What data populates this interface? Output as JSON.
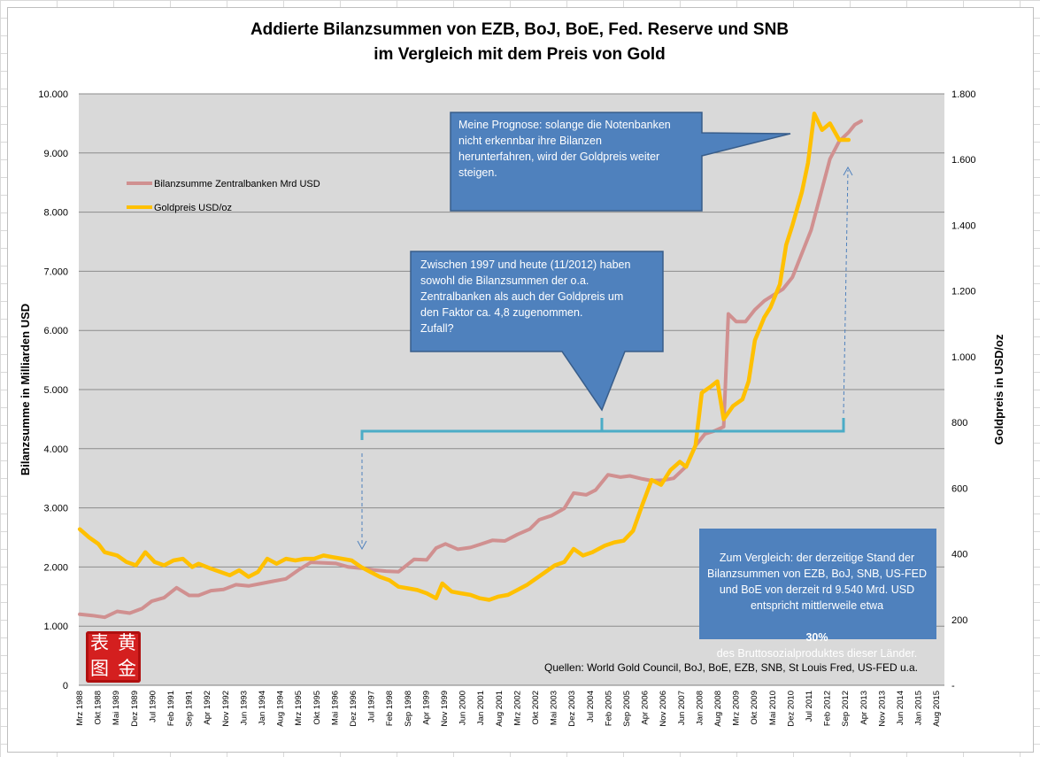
{
  "chart_data": {
    "type": "line",
    "title": [
      "Addierte Bilanzsummen von EZB, BoJ, BoE, Fed. Reserve und SNB",
      "im Vergleich mit dem Preis von Gold"
    ],
    "ylabel_left": "Bilanzsumme in Milliarden USD",
    "ylabel_right": "Goldpreis in USD/oz",
    "ylim_left": [
      0,
      10000
    ],
    "ylim_right": [
      0,
      1800
    ],
    "yticks_left": [
      "0",
      "1.000",
      "2.000",
      "3.000",
      "4.000",
      "5.000",
      "6.000",
      "7.000",
      "8.000",
      "9.000",
      "10.000"
    ],
    "yticks_right": [
      "-",
      "200",
      "400",
      "600",
      "800",
      "1.000",
      "1.200",
      "1.400",
      "1.600",
      "1.800"
    ],
    "x_categories": [
      "Mrz 1988",
      "Okt 1988",
      "Mai 1989",
      "Dez 1989",
      "Jul 1990",
      "Feb 1991",
      "Sep 1991",
      "Apr 1992",
      "Nov 1992",
      "Jun 1993",
      "Jan 1994",
      "Aug 1994",
      "Mrz 1995",
      "Okt 1995",
      "Mai 1996",
      "Dez 1996",
      "Jul 1997",
      "Feb 1998",
      "Sep 1998",
      "Apr 1999",
      "Nov 1999",
      "Jun 2000",
      "Jan 2001",
      "Aug 2001",
      "Mrz 2002",
      "Okt 2002",
      "Mai 2003",
      "Dez 2003",
      "Jul 2004",
      "Feb 2005",
      "Sep 2005",
      "Apr 2006",
      "Nov 2006",
      "Jun 2007",
      "Jan 2008",
      "Aug 2008",
      "Mrz 2009",
      "Okt 2009",
      "Mai 2010",
      "Dez 2010",
      "Jul 2011",
      "Feb 2012",
      "Sep 2012",
      "Apr 2013",
      "Nov 2013",
      "Jun 2014",
      "Jan 2015",
      "Aug 2015"
    ],
    "x_start": 1988.17,
    "x_step": 0.5833,
    "grid": "horizontal",
    "legend_position": "upper-left",
    "series": [
      {
        "name": "Bilanzsumme Zentralbanken Mrd USD",
        "axis": "left",
        "color": "#d09090",
        "points": [
          [
            1988.2,
            1200
          ],
          [
            1988.6,
            1180
          ],
          [
            1989.0,
            1150
          ],
          [
            1989.4,
            1250
          ],
          [
            1989.8,
            1220
          ],
          [
            1990.2,
            1300
          ],
          [
            1990.5,
            1420
          ],
          [
            1990.9,
            1480
          ],
          [
            1991.3,
            1650
          ],
          [
            1991.7,
            1520
          ],
          [
            1992.0,
            1520
          ],
          [
            1992.4,
            1600
          ],
          [
            1992.8,
            1620
          ],
          [
            1993.2,
            1700
          ],
          [
            1993.6,
            1680
          ],
          [
            1994.0,
            1720
          ],
          [
            1994.4,
            1760
          ],
          [
            1994.8,
            1800
          ],
          [
            1995.2,
            1950
          ],
          [
            1995.6,
            2080
          ],
          [
            1996.0,
            2070
          ],
          [
            1996.4,
            2060
          ],
          [
            1996.8,
            2000
          ],
          [
            1997.2,
            1980
          ],
          [
            1997.6,
            1950
          ],
          [
            1998.0,
            1930
          ],
          [
            1998.4,
            1920
          ],
          [
            1998.9,
            2130
          ],
          [
            1999.3,
            2120
          ],
          [
            1999.6,
            2320
          ],
          [
            1999.9,
            2390
          ],
          [
            2000.3,
            2300
          ],
          [
            2000.7,
            2330
          ],
          [
            2001.0,
            2380
          ],
          [
            2001.4,
            2450
          ],
          [
            2001.8,
            2440
          ],
          [
            2002.2,
            2550
          ],
          [
            2002.6,
            2640
          ],
          [
            2002.9,
            2800
          ],
          [
            2003.3,
            2870
          ],
          [
            2003.7,
            2990
          ],
          [
            2004.0,
            3250
          ],
          [
            2004.4,
            3220
          ],
          [
            2004.7,
            3300
          ],
          [
            2005.1,
            3560
          ],
          [
            2005.5,
            3520
          ],
          [
            2005.8,
            3540
          ],
          [
            2006.2,
            3490
          ],
          [
            2006.5,
            3460
          ],
          [
            2006.9,
            3470
          ],
          [
            2007.2,
            3500
          ],
          [
            2007.6,
            3700
          ],
          [
            2007.9,
            4050
          ],
          [
            2008.2,
            4250
          ],
          [
            2008.5,
            4300
          ],
          [
            2008.8,
            4370
          ],
          [
            2008.95,
            6280
          ],
          [
            2009.2,
            6150
          ],
          [
            2009.5,
            6150
          ],
          [
            2009.8,
            6350
          ],
          [
            2010.1,
            6500
          ],
          [
            2010.4,
            6600
          ],
          [
            2010.7,
            6700
          ],
          [
            2011.0,
            6900
          ],
          [
            2011.3,
            7300
          ],
          [
            2011.6,
            7700
          ],
          [
            2011.9,
            8300
          ],
          [
            2012.2,
            8900
          ],
          [
            2012.5,
            9200
          ],
          [
            2012.8,
            9350
          ],
          [
            2013.0,
            9480
          ],
          [
            2013.2,
            9540
          ]
        ]
      },
      {
        "name": "Goldpreis USD/oz",
        "axis": "right",
        "color": "#ffc000",
        "points": [
          [
            1988.2,
            475
          ],
          [
            1988.5,
            450
          ],
          [
            1988.8,
            430
          ],
          [
            1989.0,
            405
          ],
          [
            1989.4,
            395
          ],
          [
            1989.7,
            375
          ],
          [
            1990.0,
            365
          ],
          [
            1990.3,
            405
          ],
          [
            1990.6,
            375
          ],
          [
            1990.9,
            365
          ],
          [
            1991.2,
            380
          ],
          [
            1991.5,
            385
          ],
          [
            1991.8,
            360
          ],
          [
            1992.0,
            370
          ],
          [
            1992.4,
            355
          ],
          [
            1992.7,
            345
          ],
          [
            1993.0,
            335
          ],
          [
            1993.3,
            350
          ],
          [
            1993.6,
            330
          ],
          [
            1993.9,
            345
          ],
          [
            1994.2,
            385
          ],
          [
            1994.5,
            370
          ],
          [
            1994.8,
            385
          ],
          [
            1995.1,
            380
          ],
          [
            1995.4,
            385
          ],
          [
            1995.7,
            385
          ],
          [
            1996.0,
            395
          ],
          [
            1996.3,
            390
          ],
          [
            1996.6,
            385
          ],
          [
            1996.9,
            380
          ],
          [
            1997.2,
            360
          ],
          [
            1997.5,
            345
          ],
          [
            1997.8,
            330
          ],
          [
            1998.1,
            320
          ],
          [
            1998.4,
            300
          ],
          [
            1998.7,
            295
          ],
          [
            1999.0,
            290
          ],
          [
            1999.3,
            280
          ],
          [
            1999.6,
            265
          ],
          [
            1999.8,
            310
          ],
          [
            2000.1,
            285
          ],
          [
            2000.4,
            280
          ],
          [
            2000.7,
            275
          ],
          [
            2001.0,
            265
          ],
          [
            2001.3,
            260
          ],
          [
            2001.6,
            270
          ],
          [
            2001.9,
            275
          ],
          [
            2002.2,
            290
          ],
          [
            2002.5,
            305
          ],
          [
            2002.8,
            325
          ],
          [
            2003.1,
            345
          ],
          [
            2003.4,
            365
          ],
          [
            2003.7,
            375
          ],
          [
            2004.0,
            415
          ],
          [
            2004.3,
            395
          ],
          [
            2004.6,
            405
          ],
          [
            2005.0,
            425
          ],
          [
            2005.3,
            435
          ],
          [
            2005.6,
            440
          ],
          [
            2005.9,
            470
          ],
          [
            2006.2,
            550
          ],
          [
            2006.5,
            625
          ],
          [
            2006.8,
            610
          ],
          [
            2007.1,
            655
          ],
          [
            2007.4,
            680
          ],
          [
            2007.6,
            665
          ],
          [
            2007.9,
            730
          ],
          [
            2008.1,
            890
          ],
          [
            2008.4,
            910
          ],
          [
            2008.6,
            925
          ],
          [
            2008.8,
            810
          ],
          [
            2009.1,
            850
          ],
          [
            2009.4,
            870
          ],
          [
            2009.6,
            925
          ],
          [
            2009.8,
            1050
          ],
          [
            2010.1,
            1120
          ],
          [
            2010.3,
            1150
          ],
          [
            2010.6,
            1220
          ],
          [
            2010.8,
            1340
          ],
          [
            2011.0,
            1400
          ],
          [
            2011.3,
            1500
          ],
          [
            2011.5,
            1590
          ],
          [
            2011.7,
            1740
          ],
          [
            2011.95,
            1690
          ],
          [
            2012.2,
            1710
          ],
          [
            2012.5,
            1660
          ],
          [
            2012.8,
            1660
          ]
        ]
      }
    ],
    "annotations": [
      {
        "id": "forecast",
        "text": "Meine Prognose: solange die Notenbanken\nnicht erkennbar ihre Bilanzen\nherunterfahren, wird der Goldpreis weiter\nsteigen."
      },
      {
        "id": "comparison",
        "text": "Zwischen 1997  und heute (11/2012)  haben\nsowohl die Bilanzsummen der o.a.\nZentralbanken als auch der Goldpreis um\nden Faktor ca. 4,8 zugenommen.\nZufall?"
      },
      {
        "id": "gdp",
        "line1": "Zum Vergleich: der derzeitige Stand der\nBilanzsummen von EZB, BoJ, SNB, US-FED\nund BoE von  derzeit rd 9.540  Mrd. USD\nentspricht mittlerweile etwa",
        "percent": "30%",
        "line2": "des  Bruttosozialproduktes dieser Länder."
      }
    ],
    "source": "Quellen: World Gold Council, BoJ, BoE, EZB, SNB, St Louis Fred, US-FED u.a."
  },
  "logo": {
    "chars": [
      "表",
      "黄",
      "图",
      "金"
    ]
  },
  "colors": {
    "plot_bg": "#d9d9d9",
    "callout": "#4f81bd",
    "bracket": "#4bacc6"
  }
}
